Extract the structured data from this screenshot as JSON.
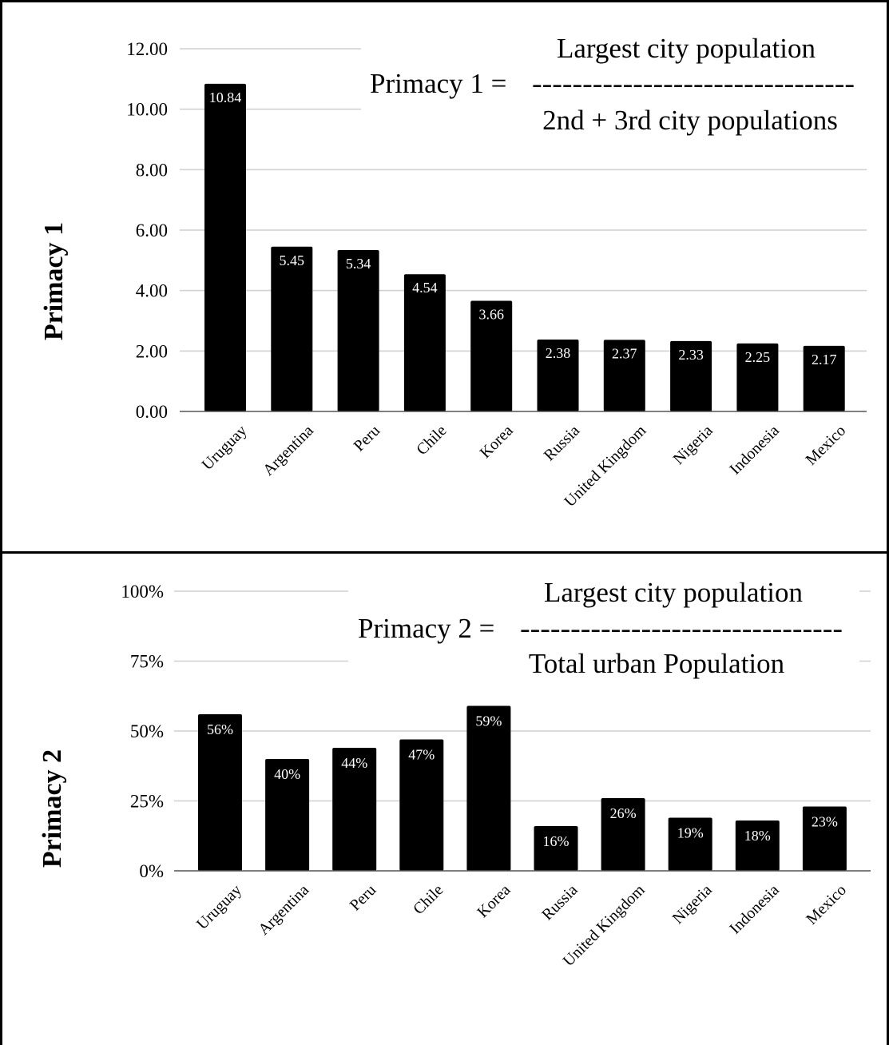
{
  "chart_data": [
    {
      "type": "bar",
      "ylabel": "Primacy 1",
      "xlabel": "",
      "categories": [
        "Uruguay",
        "Argentina",
        "Peru",
        "Chile",
        "Korea",
        "Russia",
        "United Kingdom",
        "Nigeria",
        "Indonesia",
        "Mexico"
      ],
      "values": [
        10.84,
        5.45,
        5.34,
        4.54,
        3.66,
        2.38,
        2.37,
        2.33,
        2.25,
        2.17
      ],
      "data_labels": [
        "10.84",
        "5.45",
        "5.34",
        "4.54",
        "3.66",
        "2.38",
        "2.37",
        "2.33",
        "2.25",
        "2.17"
      ],
      "ylim": [
        0,
        12
      ],
      "yticks": [
        0,
        2,
        4,
        6,
        8,
        10,
        12
      ],
      "ytick_labels": [
        "0.00",
        "2.00",
        "4.00",
        "6.00",
        "8.00",
        "10.00",
        "12.00"
      ],
      "grid": true,
      "bar_color": "#000000",
      "formula": {
        "lhs": "Primacy 1 =",
        "numerator": "Largest city population",
        "divider": "--------------------------------",
        "denominator": "2nd + 3rd city populations"
      }
    },
    {
      "type": "bar",
      "ylabel": "Primacy 2",
      "xlabel": "",
      "categories": [
        "Uruguay",
        "Argentina",
        "Peru",
        "Chile",
        "Korea",
        "Russia",
        "United Kingdom",
        "Nigeria",
        "Indonesia",
        "Mexico"
      ],
      "values": [
        56,
        40,
        44,
        47,
        59,
        16,
        26,
        19,
        18,
        23
      ],
      "data_labels": [
        "56%",
        "40%",
        "44%",
        "47%",
        "59%",
        "16%",
        "26%",
        "19%",
        "18%",
        "23%"
      ],
      "ylim": [
        0,
        100
      ],
      "yticks": [
        0,
        25,
        50,
        75,
        100
      ],
      "ytick_labels": [
        "0%",
        "25%",
        "50%",
        "75%",
        "100%"
      ],
      "grid": true,
      "bar_color": "#000000",
      "formula": {
        "lhs": "Primacy 2 =",
        "numerator": "Largest city population",
        "divider": "--------------------------------",
        "denominator": "Total urban Population"
      }
    }
  ]
}
